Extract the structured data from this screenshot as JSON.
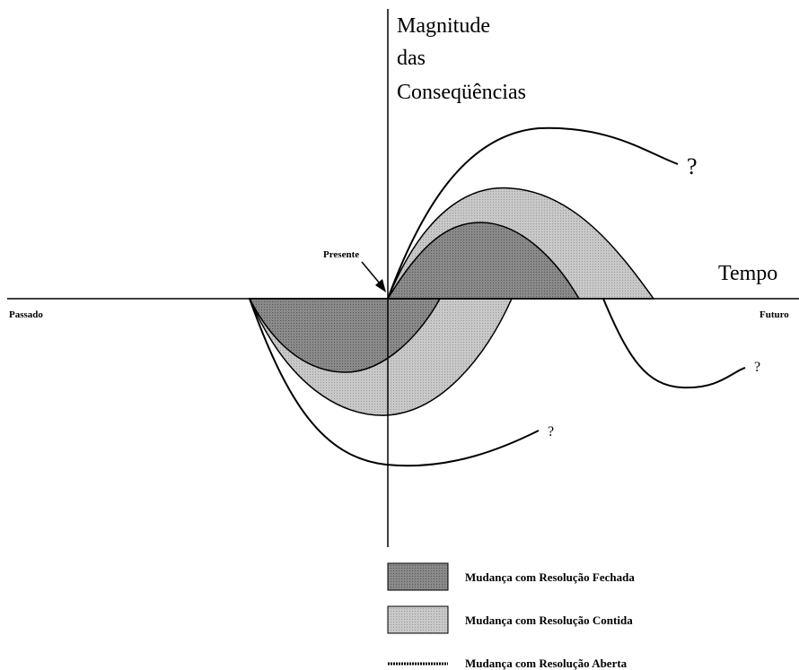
{
  "y_axis_label": [
    "Magnitude",
    "das",
    "Conseqüências"
  ],
  "x_axis_label": "Tempo",
  "left_label": "Passado",
  "right_label": "Futuro",
  "present_label": "Presente",
  "question_marks": [
    "?",
    "?",
    "?"
  ],
  "legend": [
    "Mudança com Resolução Fechada",
    "Mudança com Resolução Contida",
    "Mudança com Resolução Aberta"
  ]
}
